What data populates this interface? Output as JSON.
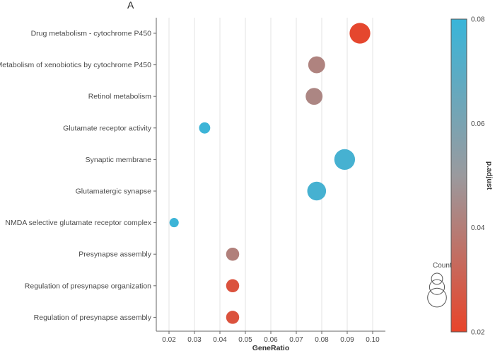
{
  "panel_label": "A",
  "chart_data": {
    "type": "scatter",
    "xlabel": "GeneRatio",
    "ylabel": "",
    "xlim": [
      0.015,
      0.105
    ],
    "xticks": [
      "0.02",
      "0.03",
      "0.04",
      "0.05",
      "0.06",
      "0.07",
      "0.08",
      "0.09",
      "0.10"
    ],
    "grid": "vertical",
    "categories": [
      "Drug metabolism - cytochrome P450",
      "Metabolism of xenobiotics by cytochrome P450",
      "Retinol metabolism",
      "Glutamate receptor activity",
      "Synaptic membrane",
      "Glutamatergic synapse",
      "NMDA selective glutamate receptor complex",
      "Presynapse assembly",
      "Regulation of presynapse organization",
      "Regulation of presynapse assembly"
    ],
    "points": [
      {
        "term": "Drug metabolism - cytochrome P450",
        "gene_ratio": 0.095,
        "p_adjust": 0.021,
        "count": 9
      },
      {
        "term": "Metabolism of xenobiotics by cytochrome P450",
        "gene_ratio": 0.078,
        "p_adjust": 0.042,
        "count": 7
      },
      {
        "term": "Retinol metabolism",
        "gene_ratio": 0.077,
        "p_adjust": 0.043,
        "count": 7
      },
      {
        "term": "Glutamate receptor activity",
        "gene_ratio": 0.034,
        "p_adjust": 0.079,
        "count": 4
      },
      {
        "term": "Synaptic membrane",
        "gene_ratio": 0.089,
        "p_adjust": 0.076,
        "count": 9
      },
      {
        "term": "Glutamatergic synapse",
        "gene_ratio": 0.078,
        "p_adjust": 0.076,
        "count": 8
      },
      {
        "term": "NMDA selective glutamate receptor complex",
        "gene_ratio": 0.022,
        "p_adjust": 0.079,
        "count": 3
      },
      {
        "term": "Presynapse assembly",
        "gene_ratio": 0.045,
        "p_adjust": 0.041,
        "count": 5
      },
      {
        "term": "Regulation of presynapse organization",
        "gene_ratio": 0.045,
        "p_adjust": 0.025,
        "count": 5
      },
      {
        "term": "Regulation of presynapse assembly",
        "gene_ratio": 0.045,
        "p_adjust": 0.025,
        "count": 5
      }
    ],
    "color_scale": {
      "title": "p.adjust",
      "range": [
        0.02,
        0.08
      ],
      "ticks": [
        "0.08",
        "0.06",
        "0.04",
        "0.02"
      ],
      "low_color": "#E8442A",
      "mid_color": "#9A9A9E",
      "high_color": "#39B5D9"
    },
    "size_legend": {
      "title": "Count",
      "sample_counts": [
        4,
        6,
        8
      ]
    }
  }
}
